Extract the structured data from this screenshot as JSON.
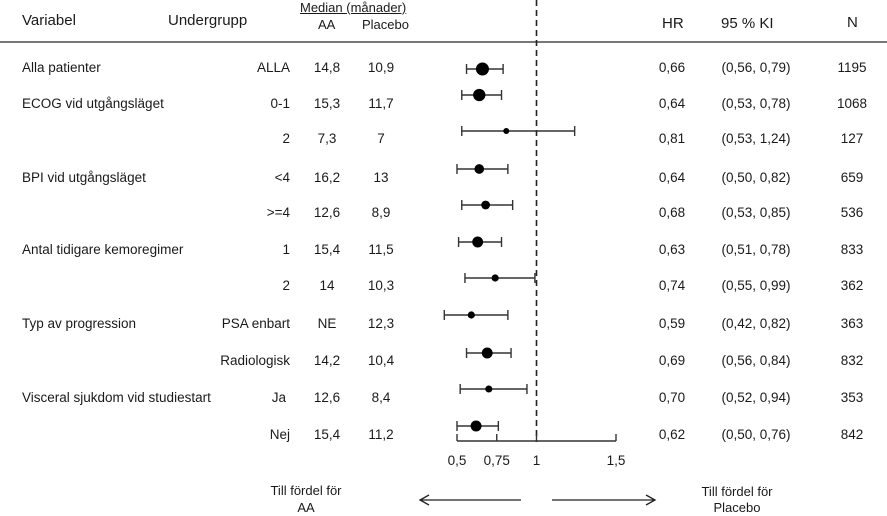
{
  "header": {
    "variabel": "Variabel",
    "undergrupp": "Undergrupp",
    "median_group": "Median (månader)",
    "aa": "AA",
    "placebo": "Placebo",
    "hr": "HR",
    "ci": "95 % KI",
    "n": "N"
  },
  "footer": {
    "favor_aa_line1": "Till fördel för",
    "favor_aa_line2": "AA",
    "favor_placebo_line1": "Till fördel för",
    "favor_placebo_line2": "Placebo"
  },
  "rows": [
    {
      "variable": "Alla patienter",
      "subgroup": "ALLA",
      "aa": "14,8",
      "placebo": "10,9",
      "hr_text": "0,66",
      "ci_text": "(0,56, 0,79)",
      "n": "1195"
    },
    {
      "variable": "ECOG vid utgångsläget",
      "subgroup": "0-1",
      "aa": "15,3",
      "placebo": "11,7",
      "hr_text": "0,64",
      "ci_text": "(0,53, 0,78)",
      "n": "1068"
    },
    {
      "variable": "",
      "subgroup": "2",
      "aa": "7,3",
      "placebo": "7",
      "hr_text": "0,81",
      "ci_text": "(0,53, 1,24)",
      "n": "127"
    },
    {
      "variable": "BPI vid utgångsläget",
      "subgroup": "<4",
      "aa": "16,2",
      "placebo": "13",
      "hr_text": "0,64",
      "ci_text": "(0,50, 0,82)",
      "n": "659"
    },
    {
      "variable": "",
      "subgroup": ">=4",
      "aa": "12,6",
      "placebo": "8,9",
      "hr_text": "0,68",
      "ci_text": "(0,53, 0,85)",
      "n": "536"
    },
    {
      "variable": "Antal tidigare kemoregimer",
      "subgroup": "1",
      "aa": "15,4",
      "placebo": "11,5",
      "hr_text": "0,63",
      "ci_text": "(0,51, 0,78)",
      "n": "833"
    },
    {
      "variable": "",
      "subgroup": "2",
      "aa": "14",
      "placebo": "10,3",
      "hr_text": "0,74",
      "ci_text": "(0,55, 0,99)",
      "n": "362"
    },
    {
      "variable": "Typ av progression",
      "subgroup": "PSA enbart",
      "aa": "NE",
      "placebo": "12,3",
      "hr_text": "0,59",
      "ci_text": "(0,42, 0,82)",
      "n": "363"
    },
    {
      "variable": "",
      "subgroup": "Radiologisk",
      "aa": "14,2",
      "placebo": "10,4",
      "hr_text": "0,69",
      "ci_text": "(0,56, 0,84)",
      "n": "832"
    },
    {
      "variable": "Visceral sjukdom vid studiestart",
      "subgroup": "Ja",
      "aa": "12,6",
      "placebo": "8,4",
      "hr_text": "0,70",
      "ci_text": "(0,52, 0,94)",
      "n": "353"
    },
    {
      "variable": "",
      "subgroup": "Nej",
      "aa": "15,4",
      "placebo": "11,2",
      "hr_text": "0,62",
      "ci_text": "(0,50, 0,76)",
      "n": "842"
    }
  ],
  "chart_data": {
    "type": "scatter",
    "subtype": "forest",
    "xlabel": "",
    "x_ticks": [
      0.5,
      0.75,
      1,
      1.5
    ],
    "x_tick_labels": [
      "0,5",
      "0,75",
      "1",
      "1,5"
    ],
    "xlim": [
      0.5,
      1.5
    ],
    "reference_line": 1,
    "series": [
      {
        "name": "HR (95% KI)",
        "points": [
          {
            "label": "Alla patienter / ALLA",
            "hr": 0.66,
            "lo": 0.56,
            "hi": 0.79,
            "n": 1195
          },
          {
            "label": "ECOG 0-1",
            "hr": 0.64,
            "lo": 0.53,
            "hi": 0.78,
            "n": 1068
          },
          {
            "label": "ECOG 2",
            "hr": 0.81,
            "lo": 0.53,
            "hi": 1.24,
            "n": 127
          },
          {
            "label": "BPI <4",
            "hr": 0.64,
            "lo": 0.5,
            "hi": 0.82,
            "n": 659
          },
          {
            "label": "BPI >=4",
            "hr": 0.68,
            "lo": 0.53,
            "hi": 0.85,
            "n": 536
          },
          {
            "label": "Kemoregimer 1",
            "hr": 0.63,
            "lo": 0.51,
            "hi": 0.78,
            "n": 833
          },
          {
            "label": "Kemoregimer 2",
            "hr": 0.74,
            "lo": 0.55,
            "hi": 0.99,
            "n": 362
          },
          {
            "label": "PSA enbart",
            "hr": 0.59,
            "lo": 0.42,
            "hi": 0.82,
            "n": 363
          },
          {
            "label": "Radiologisk",
            "hr": 0.69,
            "lo": 0.56,
            "hi": 0.84,
            "n": 832
          },
          {
            "label": "Visceral Ja",
            "hr": 0.7,
            "lo": 0.52,
            "hi": 0.94,
            "n": 353
          },
          {
            "label": "Visceral Nej",
            "hr": 0.62,
            "lo": 0.5,
            "hi": 0.76,
            "n": 842
          }
        ]
      }
    ],
    "annotations": [
      "Till fördel för AA",
      "Till fördel för Placebo"
    ]
  }
}
